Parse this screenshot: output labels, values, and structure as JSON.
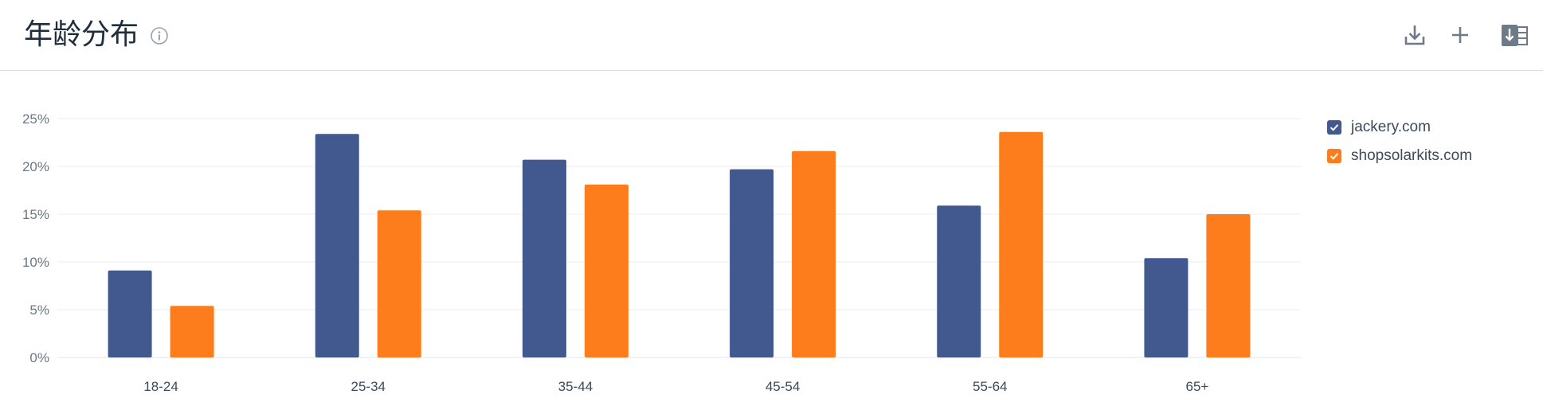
{
  "header": {
    "title": "年龄分布",
    "icons": [
      "info-icon",
      "download-icon",
      "plus-icon",
      "excel-export-icon"
    ]
  },
  "colors": {
    "series1": "#42598f",
    "series2": "#fd7c1c",
    "grid": "#eceef1",
    "axis_text": "#6b7785"
  },
  "legend": {
    "items": [
      {
        "label": "jackery.com",
        "color": "#42598f",
        "checked": true
      },
      {
        "label": "shopsolarkits.com",
        "color": "#fd7c1c",
        "checked": true
      }
    ]
  },
  "chart_data": {
    "type": "bar",
    "title": "年龄分布",
    "categories": [
      "18-24",
      "25-34",
      "35-44",
      "45-54",
      "55-64",
      "65+"
    ],
    "series": [
      {
        "name": "jackery.com",
        "values": [
          9.1,
          23.4,
          20.7,
          19.7,
          15.9,
          10.4
        ]
      },
      {
        "name": "shopsolarkits.com",
        "values": [
          5.4,
          15.4,
          18.1,
          21.6,
          23.6,
          15.0
        ]
      }
    ],
    "yticks": [
      "0%",
      "5%",
      "10%",
      "15%",
      "20%",
      "25%"
    ],
    "ylim": [
      0,
      25
    ],
    "xlabel": "",
    "ylabel": "",
    "grid": true,
    "legend_position": "right"
  }
}
